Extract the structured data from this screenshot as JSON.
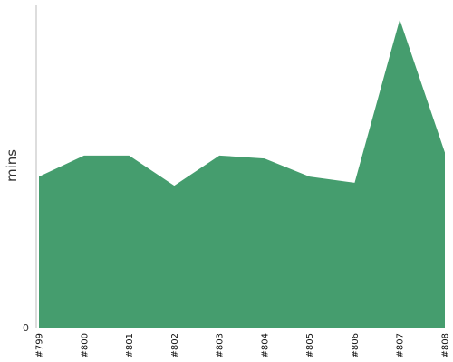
{
  "chart_data": {
    "type": "area",
    "categories": [
      "#799",
      "#800",
      "#801",
      "#802",
      "#803",
      "#804",
      "#805",
      "#806",
      "#807",
      "#808"
    ],
    "series": [
      {
        "values": [
          50,
          57,
          57,
          47,
          57,
          56,
          50,
          48,
          102,
          58
        ]
      }
    ],
    "xlabel": "",
    "ylabel": "mins",
    "y_tick_labels": [
      "0"
    ],
    "ylim": [
      0,
      107
    ],
    "grid": false,
    "colors": {
      "area_fill": "#459d6e",
      "axis_line": "#bbbbbb"
    }
  }
}
